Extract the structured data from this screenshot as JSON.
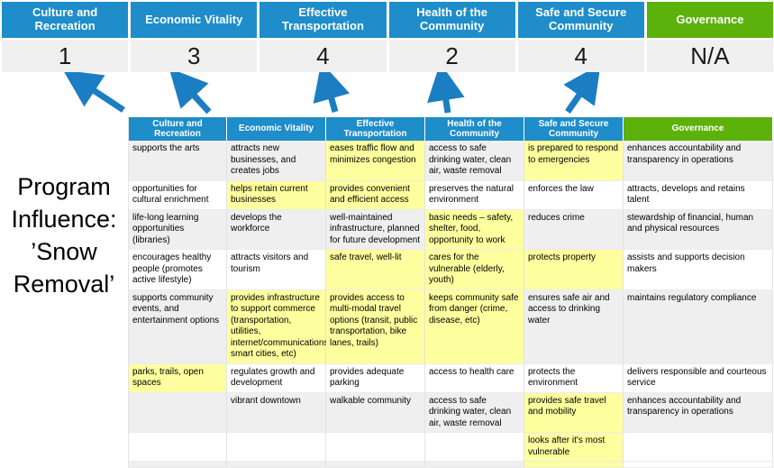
{
  "page": {
    "title_lines": [
      "Program",
      "Influence:",
      "’Snow",
      "Removal’"
    ]
  },
  "colors": {
    "header_blue": "#1e8dc9",
    "header_green": "#5cb10b",
    "highlight_yellow": "#feff9e",
    "band_gray": "#efefef",
    "score_bg": "#f0f0f0",
    "arrow_blue": "#1b7ec2"
  },
  "summary": {
    "columns": [
      {
        "label": "Culture and Recreation",
        "score": "1",
        "color_key": "header_blue"
      },
      {
        "label": "Economic Vitality",
        "score": "3",
        "color_key": "header_blue"
      },
      {
        "label": "Effective Transportation",
        "score": "4",
        "color_key": "header_blue"
      },
      {
        "label": "Health of the Community",
        "score": "2",
        "color_key": "header_blue"
      },
      {
        "label": "Safe and Secure Community",
        "score": "4",
        "color_key": "header_blue"
      },
      {
        "label": "Governance",
        "score": "N/A",
        "color_key": "header_green"
      }
    ]
  },
  "arrows": {
    "count": 5,
    "color": "#1b7ec2"
  },
  "matrix": {
    "headers": [
      {
        "label": "Culture and Recreation",
        "color_key": "header_blue"
      },
      {
        "label": "Economic Vitality",
        "color_key": "header_blue"
      },
      {
        "label": "Effective Transportation",
        "color_key": "header_blue"
      },
      {
        "label": "Health of the Community",
        "color_key": "header_blue"
      },
      {
        "label": "Safe and Secure Community",
        "color_key": "header_blue"
      },
      {
        "label": "Governance",
        "color_key": "header_green"
      }
    ],
    "rows": [
      [
        {
          "t": "supports the arts",
          "hl": false
        },
        {
          "t": "attracts new businesses, and creates jobs",
          "hl": false
        },
        {
          "t": "eases traffic flow and minimizes congestion",
          "hl": true
        },
        {
          "t": "access to safe drinking water, clean air, waste removal",
          "hl": false
        },
        {
          "t": "is prepared to respond to emergencies",
          "hl": true
        },
        {
          "t": "enhances accountability and transparency in operations",
          "hl": false
        }
      ],
      [
        {
          "t": "opportunities for cultural enrichment",
          "hl": false
        },
        {
          "t": "helps retain current businesses",
          "hl": true
        },
        {
          "t": "provides convenient and efficient access",
          "hl": true
        },
        {
          "t": "preserves the natural environment",
          "hl": false
        },
        {
          "t": "enforces the law",
          "hl": false
        },
        {
          "t": "attracts, develops and retains talent",
          "hl": false
        }
      ],
      [
        {
          "t": "life-long learning opportunities (libraries)",
          "hl": false
        },
        {
          "t": "develops the workforce",
          "hl": false
        },
        {
          "t": "well-maintained infrastructure, planned for future development",
          "hl": false
        },
        {
          "t": "basic needs – safety, shelter, food, opportunity to work",
          "hl": true
        },
        {
          "t": "reduces crime",
          "hl": false
        },
        {
          "t": "stewardship of financial, human and physical resources",
          "hl": false
        }
      ],
      [
        {
          "t": "encourages healthy people (promotes active lifestyle)",
          "hl": false
        },
        {
          "t": "attracts visitors and tourism",
          "hl": false
        },
        {
          "t": "safe travel, well-lit",
          "hl": true
        },
        {
          "t": "cares for the vulnerable (elderly, youth)",
          "hl": true
        },
        {
          "t": "protects property",
          "hl": true
        },
        {
          "t": "assists and supports decision makers",
          "hl": false
        }
      ],
      [
        {
          "t": "supports community events, and entertainment options",
          "hl": false
        },
        {
          "t": "provides infrastructure to support commerce (transportation, utilities, internet/communications, smart cities, etc)",
          "hl": true
        },
        {
          "t": "provides access to multi-modal travel options (transit, public transportation, bike lanes, trails)",
          "hl": true
        },
        {
          "t": "keeps community safe from danger (crime, disease, etc)",
          "hl": true
        },
        {
          "t": "ensures safe air and access to drinking water",
          "hl": false
        },
        {
          "t": "maintains regulatory compliance",
          "hl": false
        }
      ],
      [
        {
          "t": "parks, trails, open spaces",
          "hl": true
        },
        {
          "t": "regulates growth and development",
          "hl": false
        },
        {
          "t": "provides adequate parking",
          "hl": false
        },
        {
          "t": "access to health care",
          "hl": false
        },
        {
          "t": "protects the environment",
          "hl": false
        },
        {
          "t": "delivers responsible and courteous service",
          "hl": false
        }
      ],
      [
        {
          "t": "",
          "hl": false
        },
        {
          "t": "vibrant downtown",
          "hl": false
        },
        {
          "t": "walkable community",
          "hl": false
        },
        {
          "t": "access to safe drinking water, clean air, waste removal",
          "hl": false
        },
        {
          "t": "provides safe travel and mobility",
          "hl": true
        },
        {
          "t": "enhances accountability and transparency in operations",
          "hl": false
        }
      ],
      [
        {
          "t": "",
          "hl": false
        },
        {
          "t": "",
          "hl": false
        },
        {
          "t": "",
          "hl": false
        },
        {
          "t": "",
          "hl": false
        },
        {
          "t": "looks after it's most vulnerable",
          "hl": true
        },
        {
          "t": "",
          "hl": false
        }
      ]
    ],
    "strip_row": [
      "gray",
      "gray",
      "gray",
      "gray",
      "yellow",
      "white"
    ]
  }
}
